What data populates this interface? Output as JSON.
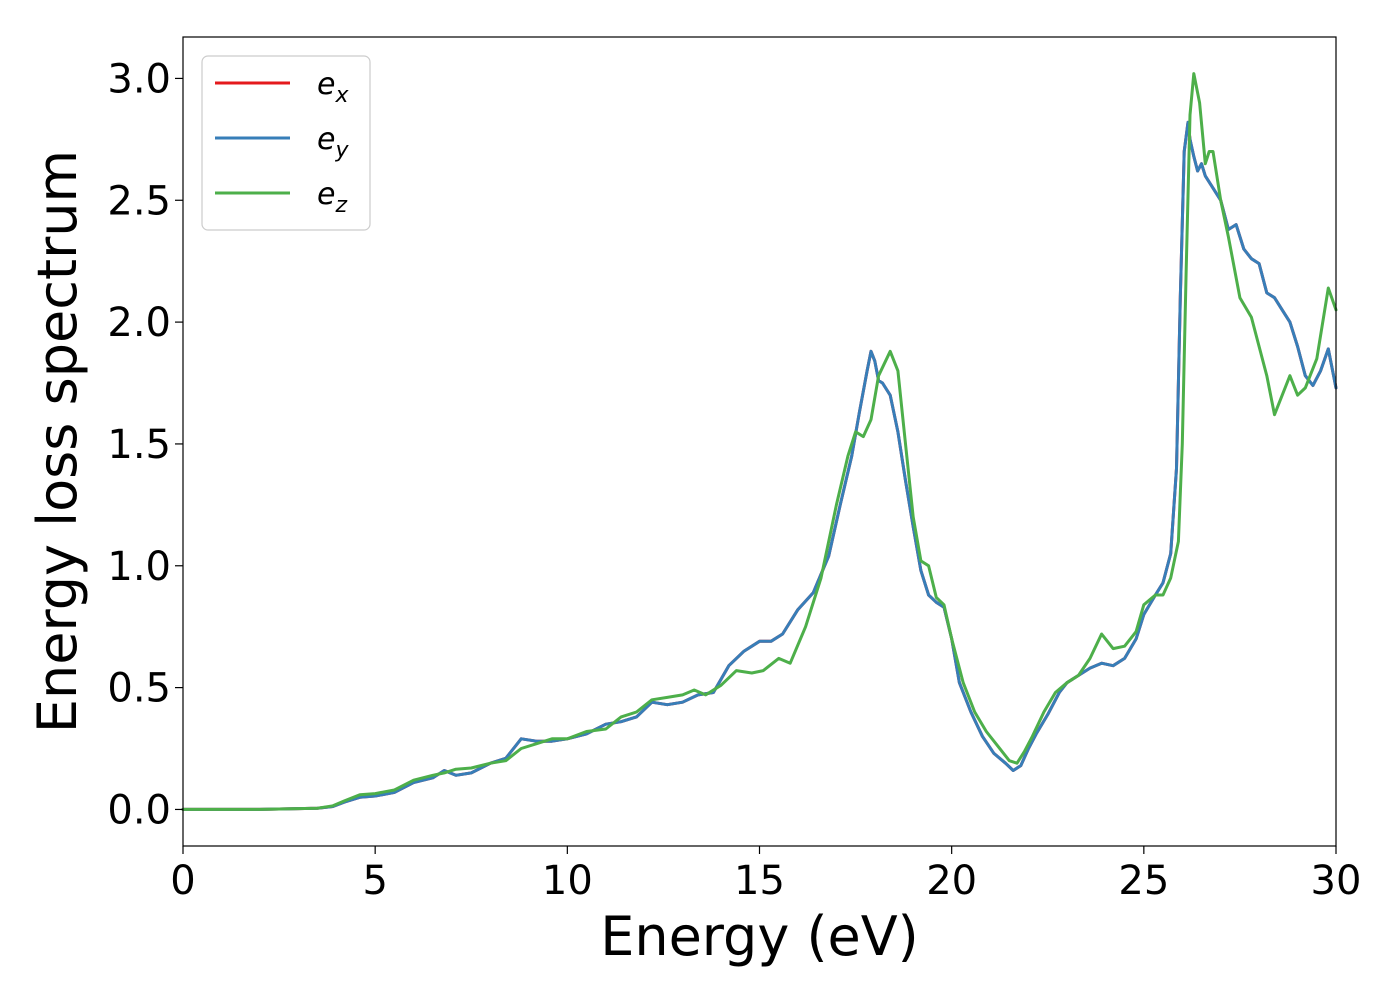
{
  "chart_data": {
    "type": "line",
    "title": "",
    "xlabel": "Energy (eV)",
    "ylabel": "Energy loss spectrum",
    "xlim": [
      0,
      30
    ],
    "ylim": [
      -0.15,
      3.17
    ],
    "xticks": [
      0,
      5,
      10,
      15,
      20,
      25,
      30
    ],
    "xtick_labels": [
      "0",
      "5",
      "10",
      "15",
      "20",
      "25",
      "30"
    ],
    "yticks": [
      0.0,
      0.5,
      1.0,
      1.5,
      2.0,
      2.5,
      3.0
    ],
    "ytick_labels": [
      "0.0",
      "0.5",
      "1.0",
      "1.5",
      "2.0",
      "2.5",
      "3.0"
    ],
    "grid": false,
    "legend_position": "top-left",
    "series": [
      {
        "name": "e",
        "subscript": "x",
        "color": "#e41a1c",
        "x": [
          0,
          2,
          3.5,
          3.9,
          4.2,
          4.6,
          5,
          5.5,
          6,
          6.5,
          6.8,
          7.1,
          7.5,
          8,
          8.4,
          8.8,
          9.2,
          9.6,
          10,
          10.5,
          11,
          11.4,
          11.8,
          12.2,
          12.6,
          13,
          13.4,
          13.8,
          14.2,
          14.6,
          15,
          15.3,
          15.6,
          16,
          16.4,
          16.8,
          17.1,
          17.4,
          17.6,
          17.8,
          17.9,
          18,
          18.1,
          18.2,
          18.4,
          18.6,
          18.8,
          19,
          19.2,
          19.4,
          19.6,
          19.8,
          20,
          20.2,
          20.5,
          20.8,
          21.1,
          21.4,
          21.6,
          21.8,
          22,
          22.2,
          22.5,
          22.8,
          23,
          23.3,
          23.6,
          23.9,
          24.2,
          24.5,
          24.8,
          25,
          25.3,
          25.5,
          25.7,
          25.85,
          25.95,
          26.05,
          26.15,
          26.2,
          26.3,
          26.4,
          26.5,
          26.6,
          26.8,
          27,
          27.2,
          27.4,
          27.6,
          27.8,
          28,
          28.2,
          28.4,
          28.6,
          28.8,
          29,
          29.2,
          29.4,
          29.6,
          29.8,
          30
        ],
        "values": [
          0,
          0,
          0.005,
          0.012,
          0.03,
          0.05,
          0.055,
          0.07,
          0.11,
          0.13,
          0.16,
          0.14,
          0.15,
          0.19,
          0.21,
          0.29,
          0.28,
          0.28,
          0.29,
          0.31,
          0.35,
          0.36,
          0.38,
          0.44,
          0.43,
          0.44,
          0.47,
          0.48,
          0.59,
          0.65,
          0.69,
          0.69,
          0.72,
          0.82,
          0.89,
          1.04,
          1.25,
          1.45,
          1.63,
          1.8,
          1.88,
          1.84,
          1.76,
          1.75,
          1.7,
          1.55,
          1.35,
          1.16,
          0.98,
          0.88,
          0.85,
          0.83,
          0.7,
          0.52,
          0.4,
          0.3,
          0.23,
          0.19,
          0.16,
          0.18,
          0.25,
          0.31,
          0.39,
          0.48,
          0.52,
          0.55,
          0.58,
          0.6,
          0.59,
          0.62,
          0.7,
          0.8,
          0.88,
          0.93,
          1.05,
          1.4,
          2.1,
          2.7,
          2.82,
          2.75,
          2.68,
          2.62,
          2.65,
          2.6,
          2.55,
          2.5,
          2.38,
          2.4,
          2.3,
          2.26,
          2.24,
          2.12,
          2.1,
          2.05,
          2.0,
          1.9,
          1.78,
          1.74,
          1.8,
          1.89,
          1.73
        ]
      },
      {
        "name": "e",
        "subscript": "y",
        "color": "#377eb8",
        "x": [
          0,
          2,
          3.5,
          3.9,
          4.2,
          4.6,
          5,
          5.5,
          6,
          6.5,
          6.8,
          7.1,
          7.5,
          8,
          8.4,
          8.8,
          9.2,
          9.6,
          10,
          10.5,
          11,
          11.4,
          11.8,
          12.2,
          12.6,
          13,
          13.4,
          13.8,
          14.2,
          14.6,
          15,
          15.3,
          15.6,
          16,
          16.4,
          16.8,
          17.1,
          17.4,
          17.6,
          17.8,
          17.9,
          18,
          18.1,
          18.2,
          18.4,
          18.6,
          18.8,
          19,
          19.2,
          19.4,
          19.6,
          19.8,
          20,
          20.2,
          20.5,
          20.8,
          21.1,
          21.4,
          21.6,
          21.8,
          22,
          22.2,
          22.5,
          22.8,
          23,
          23.3,
          23.6,
          23.9,
          24.2,
          24.5,
          24.8,
          25,
          25.3,
          25.5,
          25.7,
          25.85,
          25.95,
          26.05,
          26.15,
          26.2,
          26.3,
          26.4,
          26.5,
          26.6,
          26.8,
          27,
          27.2,
          27.4,
          27.6,
          27.8,
          28,
          28.2,
          28.4,
          28.6,
          28.8,
          29,
          29.2,
          29.4,
          29.6,
          29.8,
          30
        ],
        "values": [
          0,
          0,
          0.005,
          0.012,
          0.03,
          0.05,
          0.055,
          0.07,
          0.11,
          0.13,
          0.16,
          0.14,
          0.15,
          0.19,
          0.21,
          0.29,
          0.28,
          0.28,
          0.29,
          0.31,
          0.35,
          0.36,
          0.38,
          0.44,
          0.43,
          0.44,
          0.47,
          0.48,
          0.59,
          0.65,
          0.69,
          0.69,
          0.72,
          0.82,
          0.89,
          1.04,
          1.25,
          1.45,
          1.63,
          1.8,
          1.88,
          1.84,
          1.76,
          1.75,
          1.7,
          1.55,
          1.35,
          1.16,
          0.98,
          0.88,
          0.85,
          0.83,
          0.7,
          0.52,
          0.4,
          0.3,
          0.23,
          0.19,
          0.16,
          0.18,
          0.25,
          0.31,
          0.39,
          0.48,
          0.52,
          0.55,
          0.58,
          0.6,
          0.59,
          0.62,
          0.7,
          0.8,
          0.88,
          0.93,
          1.05,
          1.4,
          2.1,
          2.7,
          2.82,
          2.75,
          2.68,
          2.62,
          2.65,
          2.6,
          2.55,
          2.5,
          2.38,
          2.4,
          2.3,
          2.26,
          2.24,
          2.12,
          2.1,
          2.05,
          2.0,
          1.9,
          1.78,
          1.74,
          1.8,
          1.89,
          1.73
        ]
      },
      {
        "name": "e",
        "subscript": "z",
        "color": "#4daf4a",
        "x": [
          0,
          2,
          3.5,
          3.9,
          4.2,
          4.6,
          5,
          5.5,
          6,
          6.5,
          6.8,
          7.1,
          7.5,
          8,
          8.4,
          8.8,
          9.2,
          9.6,
          10,
          10.5,
          11,
          11.4,
          11.8,
          12.2,
          12.6,
          13,
          13.3,
          13.6,
          14,
          14.4,
          14.8,
          15.1,
          15.5,
          15.8,
          16.2,
          16.6,
          17,
          17.3,
          17.5,
          17.7,
          17.9,
          18.1,
          18.4,
          18.6,
          18.8,
          19,
          19.2,
          19.4,
          19.6,
          19.8,
          20,
          20.3,
          20.6,
          20.9,
          21.2,
          21.5,
          21.7,
          21.9,
          22.1,
          22.4,
          22.7,
          23,
          23.3,
          23.6,
          23.9,
          24.2,
          24.5,
          24.8,
          25,
          25.3,
          25.5,
          25.7,
          25.9,
          26,
          26.1,
          26.2,
          26.3,
          26.45,
          26.6,
          26.7,
          26.8,
          27,
          27.2,
          27.5,
          27.8,
          28,
          28.2,
          28.4,
          28.6,
          28.8,
          29,
          29.2,
          29.5,
          29.8,
          30
        ],
        "values": [
          0,
          0,
          0.005,
          0.015,
          0.035,
          0.06,
          0.065,
          0.08,
          0.12,
          0.14,
          0.15,
          0.165,
          0.17,
          0.19,
          0.2,
          0.25,
          0.27,
          0.29,
          0.29,
          0.32,
          0.33,
          0.38,
          0.4,
          0.45,
          0.46,
          0.47,
          0.49,
          0.47,
          0.51,
          0.57,
          0.56,
          0.57,
          0.62,
          0.6,
          0.75,
          0.95,
          1.25,
          1.45,
          1.55,
          1.53,
          1.6,
          1.78,
          1.88,
          1.8,
          1.5,
          1.2,
          1.02,
          1.0,
          0.87,
          0.84,
          0.7,
          0.52,
          0.4,
          0.32,
          0.26,
          0.2,
          0.19,
          0.24,
          0.3,
          0.4,
          0.48,
          0.52,
          0.55,
          0.62,
          0.72,
          0.66,
          0.67,
          0.73,
          0.84,
          0.88,
          0.88,
          0.95,
          1.1,
          1.5,
          2.2,
          2.85,
          3.02,
          2.9,
          2.65,
          2.7,
          2.7,
          2.5,
          2.35,
          2.1,
          2.02,
          1.9,
          1.78,
          1.62,
          1.7,
          1.78,
          1.7,
          1.73,
          1.85,
          2.14,
          2.05
        ]
      }
    ]
  }
}
